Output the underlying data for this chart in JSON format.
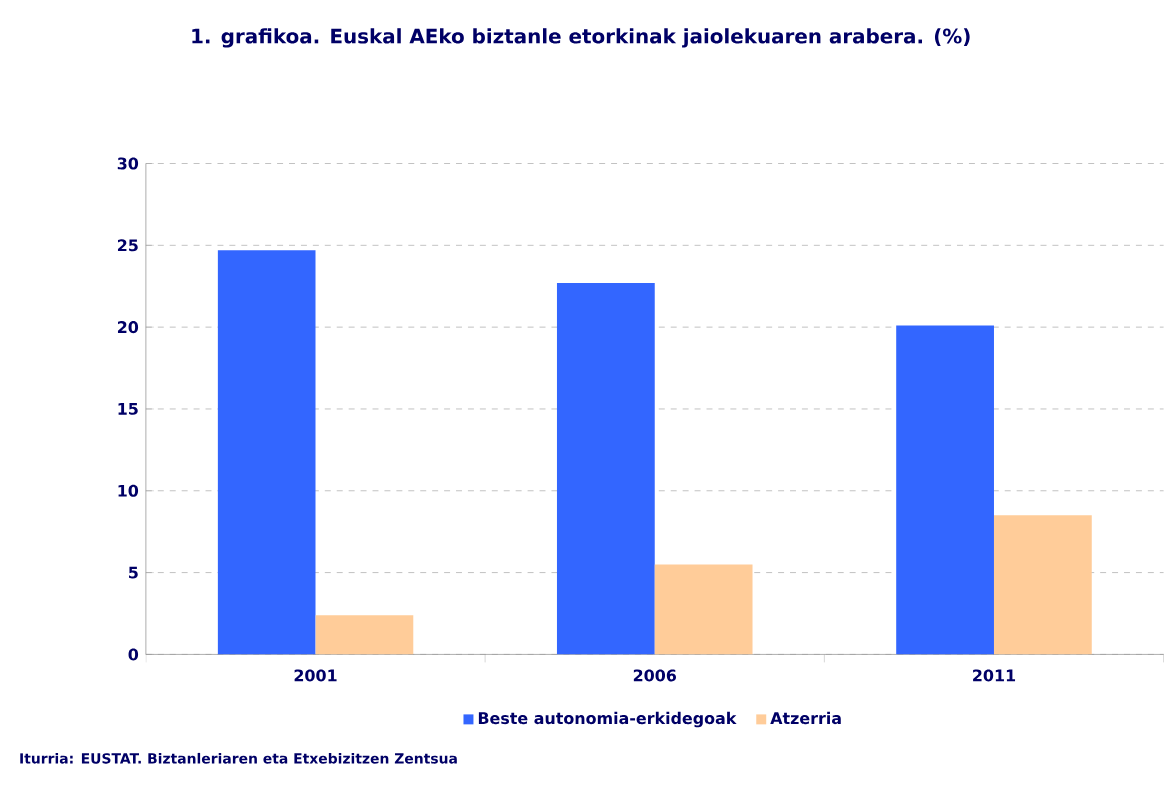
{
  "chart_data": {
    "type": "bar",
    "title": "1. grafikoa. Euskal AEko biztanle etorkinak jaiolekuaren arabera. (%)",
    "categories": [
      "2001",
      "2006",
      "2011"
    ],
    "series": [
      {
        "name": "Beste autonomia-erkidegoak",
        "color": "#3366ff",
        "values": [
          24.7,
          22.7,
          20.1
        ]
      },
      {
        "name": "Atzerria",
        "color": "#ffcc99",
        "values": [
          2.4,
          5.5,
          8.5
        ]
      }
    ],
    "ylim": [
      0,
      30
    ],
    "yticks": [
      0,
      5,
      10,
      15,
      20,
      25,
      30
    ],
    "grid": "y",
    "legend": "bottom",
    "annotations": [
      "Iturria: EUSTAT. Biztanleriaren eta Etxebizitzen Zentsua"
    ]
  }
}
